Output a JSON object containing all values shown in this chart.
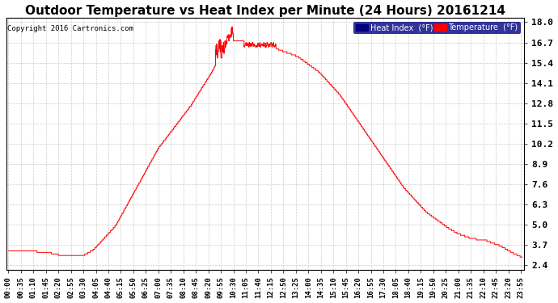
{
  "title": "Outdoor Temperature vs Heat Index per Minute (24 Hours) 20161214",
  "copyright": "Copyright 2016 Cartronics.com",
  "legend_labels": [
    "Heat Index  (°F)",
    "Temperature  (°F)"
  ],
  "yticks": [
    2.4,
    3.7,
    5.0,
    6.3,
    7.6,
    8.9,
    10.2,
    11.5,
    12.8,
    14.1,
    15.4,
    16.7,
    18.0
  ],
  "ymin": 2.1,
  "ymax": 18.3,
  "background_color": "#ffffff",
  "grid_color": "#cccccc",
  "title_fontsize": 11,
  "n_minutes": 1440,
  "tick_interval": 35,
  "temp_color": "red",
  "heat_color": "#000080"
}
